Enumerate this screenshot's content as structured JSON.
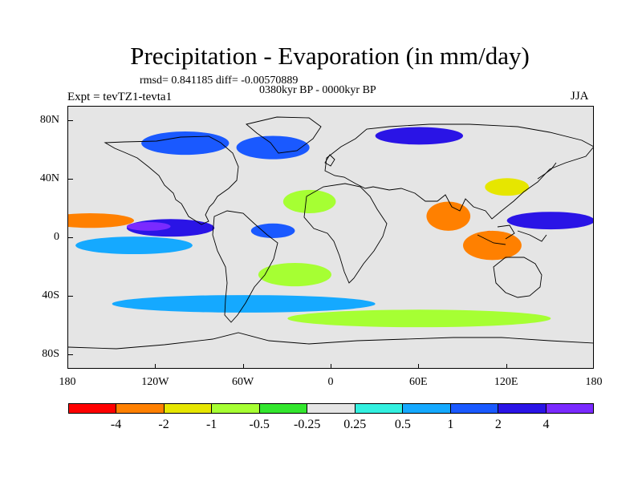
{
  "title": "Precipitation - Evaporation (in mm/day)",
  "stats": "rmsd= 0.841185 diff= -0.00570889",
  "period": "0380kyr BP - 0000kyr BP",
  "experiment": "Expt = tevTZ1-tevta1",
  "season": "JJA",
  "map": {
    "projection": "cylindrical-equidistant",
    "lon_range": [
      -180,
      180
    ],
    "lat_range": [
      -90,
      90
    ],
    "background": "#e5e5e5",
    "lat_labels": [
      {
        "lat": 80,
        "text": "80N"
      },
      {
        "lat": 40,
        "text": "40N"
      },
      {
        "lat": 0,
        "text": "0"
      },
      {
        "lat": -40,
        "text": "40S"
      },
      {
        "lat": -80,
        "text": "80S"
      }
    ],
    "lon_labels": [
      {
        "lon": -180,
        "text": "180"
      },
      {
        "lon": -120,
        "text": "120W"
      },
      {
        "lon": -60,
        "text": "60W"
      },
      {
        "lon": 0,
        "text": "0"
      },
      {
        "lon": 60,
        "text": "60E"
      },
      {
        "lon": 120,
        "text": "120E"
      },
      {
        "lon": 180,
        "text": "180"
      }
    ],
    "anomaly_regions": [
      {
        "name": "north-pacific-itcz-dry-band",
        "lon": -165,
        "lat": 12,
        "rlon": 30,
        "rlat": 5,
        "class": "-2"
      },
      {
        "name": "north-pacific-itcz-wet-band",
        "lon": -110,
        "lat": 7,
        "rlon": 30,
        "rlat": 6,
        "class": "2"
      },
      {
        "name": "south-pacific-wet-band",
        "lon": -135,
        "lat": -5,
        "rlon": 40,
        "rlat": 6,
        "class": "0.5"
      },
      {
        "name": "central-pacific-wet-core",
        "lon": -125,
        "lat": 8,
        "rlon": 15,
        "rlat": 3,
        "class": "4"
      },
      {
        "name": "tropical-atlantic-wet",
        "lon": -40,
        "lat": 5,
        "rlon": 15,
        "rlat": 5,
        "class": "1"
      },
      {
        "name": "north-atlantic-dry-band",
        "lon": -15,
        "lat": 25,
        "rlon": 18,
        "rlat": 8,
        "class": "-0.5"
      },
      {
        "name": "indian-ocean-dry-core",
        "lon": 85,
        "lat": 14,
        "rlon": 8,
        "rlat": 6,
        "class": "-4"
      },
      {
        "name": "bay-of-bengal-dry",
        "lon": 80,
        "lat": 15,
        "rlon": 15,
        "rlat": 10,
        "class": "-2"
      },
      {
        "name": "maritime-continent-dry-core",
        "lon": 108,
        "lat": 0,
        "rlon": 5,
        "rlat": 5,
        "class": "-4"
      },
      {
        "name": "maritime-continent-dry",
        "lon": 110,
        "lat": -5,
        "rlon": 20,
        "rlat": 10,
        "class": "-2"
      },
      {
        "name": "west-pacific-wet-band",
        "lon": 150,
        "lat": 12,
        "rlon": 30,
        "rlat": 6,
        "class": "2"
      },
      {
        "name": "northern-europe-wet",
        "lon": -40,
        "lat": 62,
        "rlon": 25,
        "rlat": 8,
        "class": "1"
      },
      {
        "name": "siberia-wet-band",
        "lon": 60,
        "lat": 70,
        "rlon": 30,
        "rlat": 6,
        "class": "2"
      },
      {
        "name": "north-america-wet",
        "lon": -100,
        "lat": 65,
        "rlon": 30,
        "rlat": 8,
        "class": "1"
      },
      {
        "name": "southern-ocean-wet-band",
        "lon": -60,
        "lat": -45,
        "rlon": 90,
        "rlat": 6,
        "class": "0.5"
      },
      {
        "name": "southern-ocean-dry-band",
        "lon": 60,
        "lat": -55,
        "rlon": 90,
        "rlat": 6,
        "class": "-0.5"
      },
      {
        "name": "south-atlantic-dry",
        "lon": -25,
        "lat": -25,
        "rlon": 25,
        "rlat": 8,
        "class": "-0.5"
      },
      {
        "name": "east-asia-dry",
        "lon": 120,
        "lat": 35,
        "rlon": 15,
        "rlat": 6,
        "class": "-1"
      }
    ]
  },
  "colorbar": {
    "colors": [
      "#ff0000",
      "#ff8000",
      "#e6e600",
      "#a6ff33",
      "#33e62e",
      "#e5e5e5",
      "#33f0e0",
      "#15a9ff",
      "#1a59ff",
      "#2a14e6",
      "#7a2aff"
    ],
    "labels": [
      "-4",
      "-2",
      "-1",
      "-0.5",
      "-0.25",
      "0.25",
      "0.5",
      "1",
      "2",
      "4"
    ]
  }
}
